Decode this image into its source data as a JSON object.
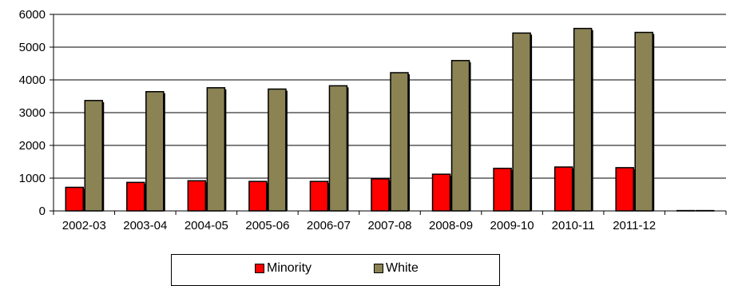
{
  "chart_data": {
    "type": "bar",
    "categories": [
      "2002-03",
      "2003-04",
      "2004-05",
      "2005-06",
      "2006-07",
      "2007-08",
      "2008-09",
      "2009-10",
      "2010-11",
      "2011-12",
      ""
    ],
    "series": [
      {
        "name": "Minority",
        "color": "#ff0000",
        "values": [
          720,
          870,
          920,
          900,
          900,
          980,
          1120,
          1300,
          1340,
          1320,
          10
        ]
      },
      {
        "name": "White",
        "color": "#8b8354",
        "values": [
          3370,
          3640,
          3760,
          3720,
          3820,
          4220,
          4590,
          5430,
          5570,
          5450,
          10
        ]
      }
    ],
    "ylim": [
      0,
      6000
    ],
    "yticks": [
      0,
      1000,
      2000,
      3000,
      4000,
      5000,
      6000
    ],
    "grid": true,
    "legend": "bottom"
  }
}
